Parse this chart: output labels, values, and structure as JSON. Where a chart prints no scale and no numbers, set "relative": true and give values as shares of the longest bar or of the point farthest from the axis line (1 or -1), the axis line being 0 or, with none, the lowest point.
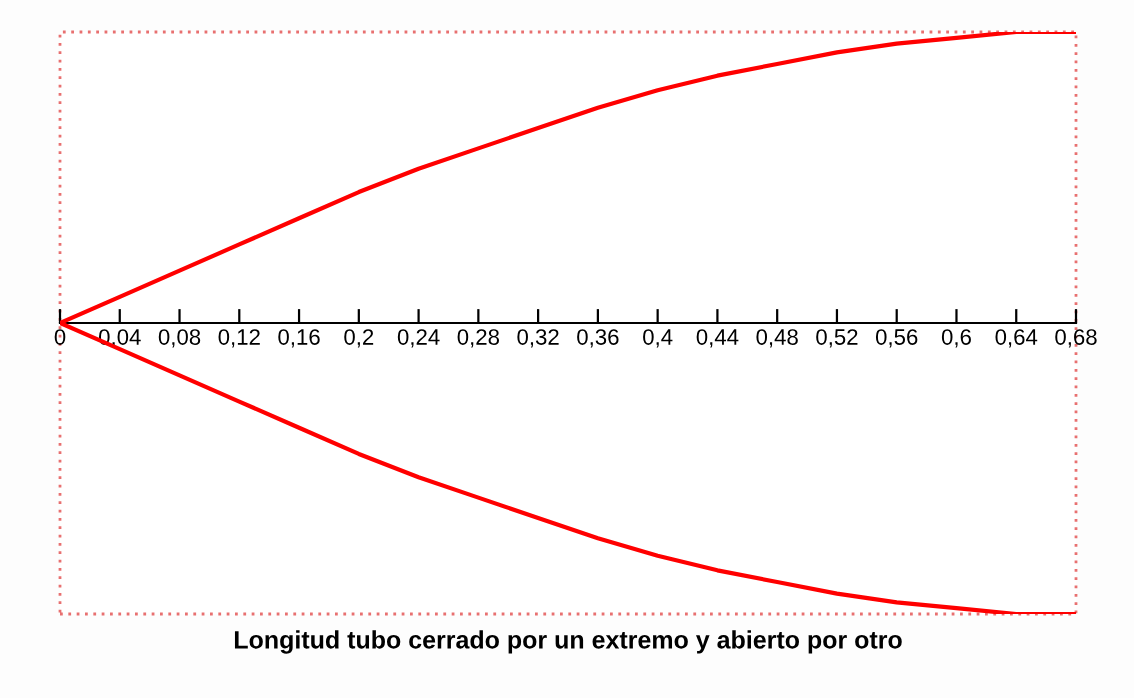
{
  "chart_data": {
    "type": "line",
    "relative": true,
    "xlabel": "Longitud tubo cerrado por un extremo y abierto por otro",
    "xlim": [
      0,
      0.68
    ],
    "xticks": [
      0,
      {
        "value": 0.04,
        "label": "0,04"
      },
      {
        "value": 0.08,
        "label": "0,08"
      },
      {
        "value": 0.12,
        "label": "0,12"
      },
      {
        "value": 0.16,
        "label": "0,16"
      },
      {
        "value": 0.2,
        "label": "0,2"
      },
      {
        "value": 0.24,
        "label": "0,24"
      },
      {
        "value": 0.28,
        "label": "0,28"
      },
      {
        "value": 0.32,
        "label": "0,32"
      },
      {
        "value": 0.36,
        "label": "0,36"
      },
      {
        "value": 0.4,
        "label": "0,4"
      },
      {
        "value": 0.44,
        "label": "0,44"
      },
      {
        "value": 0.48,
        "label": "0,48"
      },
      {
        "value": 0.52,
        "label": "0,52"
      },
      {
        "value": 0.56,
        "label": "0,56"
      },
      {
        "value": 0.6,
        "label": "0,6"
      },
      {
        "value": 0.64,
        "label": "0,64"
      },
      {
        "value": 0.68,
        "label": "0,68"
      }
    ],
    "x": [
      0,
      0.04,
      0.08,
      0.12,
      0.16,
      0.2,
      0.24,
      0.28,
      0.32,
      0.36,
      0.4,
      0.44,
      0.48,
      0.52,
      0.56,
      0.6,
      0.64,
      0.68
    ],
    "series": [
      {
        "color": "#ff0000",
        "values": [
          0,
          0.09,
          0.18,
          0.27,
          0.36,
          0.45,
          0.53,
          0.6,
          0.67,
          0.74,
          0.8,
          0.85,
          0.89,
          0.93,
          0.96,
          0.98,
          1,
          1
        ]
      },
      {
        "color": "#ff0000",
        "values": [
          0,
          -0.09,
          -0.18,
          -0.27,
          -0.36,
          -0.45,
          -0.53,
          -0.6,
          -0.67,
          -0.74,
          -0.8,
          -0.85,
          -0.89,
          -0.93,
          -0.96,
          -0.98,
          -1,
          -1
        ]
      }
    ],
    "tick_labels": "x",
    "grid": false,
    "legend": false,
    "marker": "none",
    "line_style": "solid"
  }
}
